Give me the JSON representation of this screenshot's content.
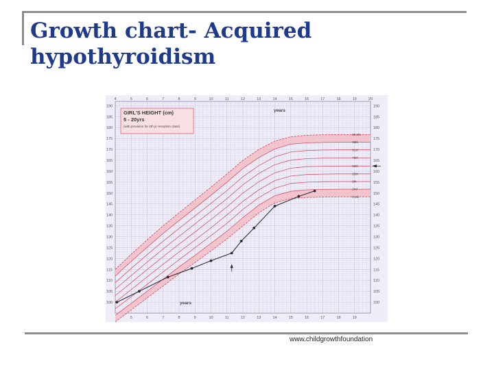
{
  "slide": {
    "title": "Growth chart- Acquired hypothyroidism",
    "source": "www.childgrowthfoundation"
  },
  "colors": {
    "title": "#1f3a8a",
    "band": "#f4b8c0",
    "centile": "#d9506a",
    "patient": "#2b2b3a",
    "grid": "#c9c3dd",
    "background": "#efeef8",
    "box": "#f8dfe3"
  },
  "chart_data": {
    "type": "line",
    "title": "GIRL'S HEIGHT (cm)",
    "subtitle": "5 - 20yrs",
    "note": "(with provision for 4th yr reception class)",
    "xlabel_top": "years",
    "xlabel_bottom": "years",
    "xlim": [
      4,
      20
    ],
    "ylim": [
      95,
      192
    ],
    "top_ticks": [
      "4",
      "5",
      "6",
      "7",
      "8",
      "9",
      "10",
      "11",
      "12",
      "13",
      "14",
      "15",
      "16",
      "17",
      "18",
      "19",
      "20"
    ],
    "bottom_ticks": [
      "5",
      "6",
      "7",
      "8",
      "9",
      "10",
      "11",
      "12",
      "13",
      "14",
      "15",
      "16",
      "17",
      "18",
      "19"
    ],
    "y_ticks": [
      "100",
      "105",
      "110",
      "115",
      "120",
      "125",
      "130",
      "135",
      "140",
      "145",
      "150",
      "155",
      "160",
      "165",
      "170",
      "175",
      "180",
      "185",
      "190"
    ],
    "ages": [
      4,
      5,
      6,
      7,
      8,
      9,
      10,
      11,
      12,
      13,
      14,
      15,
      16,
      17,
      18,
      20
    ],
    "centiles": [
      {
        "label": "0.4th",
        "values": [
          91,
          96.5,
          102,
          107.5,
          113,
          118.2,
          123.5,
          129,
          135,
          141,
          145.5,
          147.5,
          148,
          148.2,
          148.3,
          148.3
        ]
      },
      {
        "label": "2nd",
        "values": [
          94,
          99.5,
          105,
          110.6,
          116.2,
          121.5,
          127,
          132.5,
          138.8,
          144.5,
          148.8,
          150.8,
          151.5,
          151.7,
          151.8,
          151.8
        ]
      },
      {
        "label": "9th",
        "values": [
          97,
          102.5,
          108.2,
          113.9,
          119.5,
          125,
          130.5,
          136.2,
          142.5,
          148,
          152.2,
          154.4,
          155,
          155.2,
          155.3,
          155.3
        ]
      },
      {
        "label": "25th",
        "values": [
          100,
          105.8,
          111.6,
          117.4,
          123,
          128.5,
          134.1,
          140,
          146.2,
          151.5,
          155.7,
          157.8,
          158.5,
          158.7,
          158.8,
          158.8
        ]
      },
      {
        "label": "50th",
        "values": [
          103,
          109,
          115,
          120.9,
          126.6,
          132.2,
          137.9,
          143.7,
          150,
          155.2,
          159.3,
          161.4,
          162.1,
          162.3,
          162.4,
          162.4
        ]
      },
      {
        "label": "75th",
        "values": [
          106,
          112.2,
          118.4,
          124.4,
          130.2,
          135.9,
          141.6,
          147.5,
          153.8,
          159,
          163,
          165.1,
          165.8,
          166,
          166.1,
          166.1
        ]
      },
      {
        "label": "91st",
        "values": [
          109,
          115.5,
          121.8,
          128,
          133.8,
          139.6,
          145.3,
          151.2,
          157.5,
          162.6,
          166.6,
          168.8,
          169.5,
          169.7,
          169.8,
          169.8
        ]
      },
      {
        "label": "98th",
        "values": [
          112,
          118.7,
          125.2,
          131.5,
          137.4,
          143.2,
          149,
          155,
          161.3,
          166.3,
          170.2,
          172.4,
          173,
          173.2,
          173.3,
          173.3
        ]
      },
      {
        "label": "99.6th",
        "values": [
          115,
          122,
          128.6,
          135,
          141,
          146.9,
          152.7,
          158.8,
          165,
          170,
          173.8,
          175.8,
          176.5,
          176.7,
          176.8,
          176.8
        ]
      }
    ],
    "series": [
      {
        "x": [
          4.1,
          5.5,
          7.3,
          8.8,
          10,
          11.3,
          11.9,
          12.7,
          14,
          15.5,
          16.5
        ],
        "y": [
          100,
          105,
          111.5,
          115.5,
          119,
          122.5,
          128,
          134,
          144,
          148.5,
          151
        ]
      }
    ],
    "marker_age": 11.3,
    "grid": true,
    "label_box": "top-left"
  }
}
